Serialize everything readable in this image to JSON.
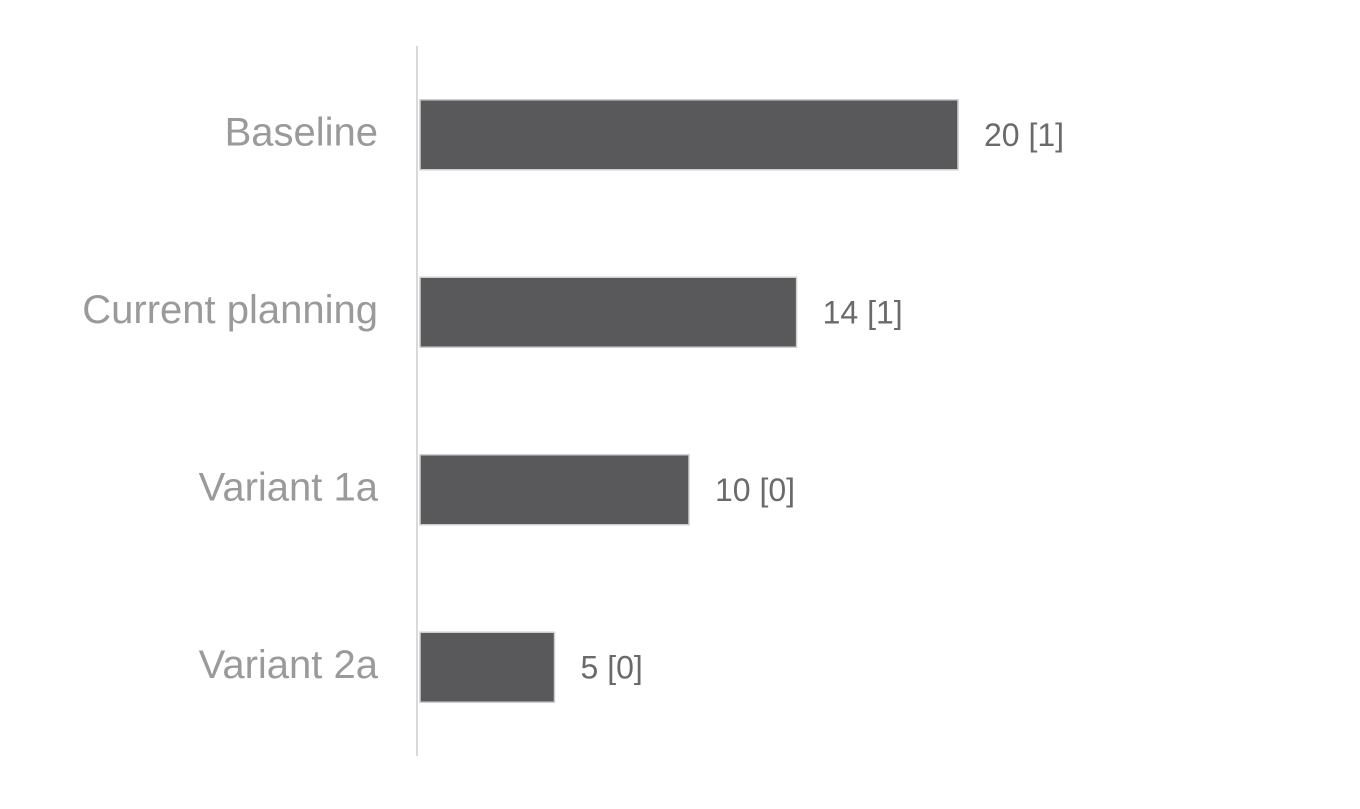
{
  "chart_data": {
    "type": "hbar",
    "categories": [
      "Baseline",
      "Current planning",
      "Variant 1a",
      "Variant 2a"
    ],
    "values": [
      20,
      14,
      10,
      5
    ],
    "value_labels": [
      "20 [1]",
      "14 [1]",
      "10 [0]",
      "5 [0]"
    ],
    "color": "#59595b",
    "xlim": [
      0,
      30
    ]
  }
}
